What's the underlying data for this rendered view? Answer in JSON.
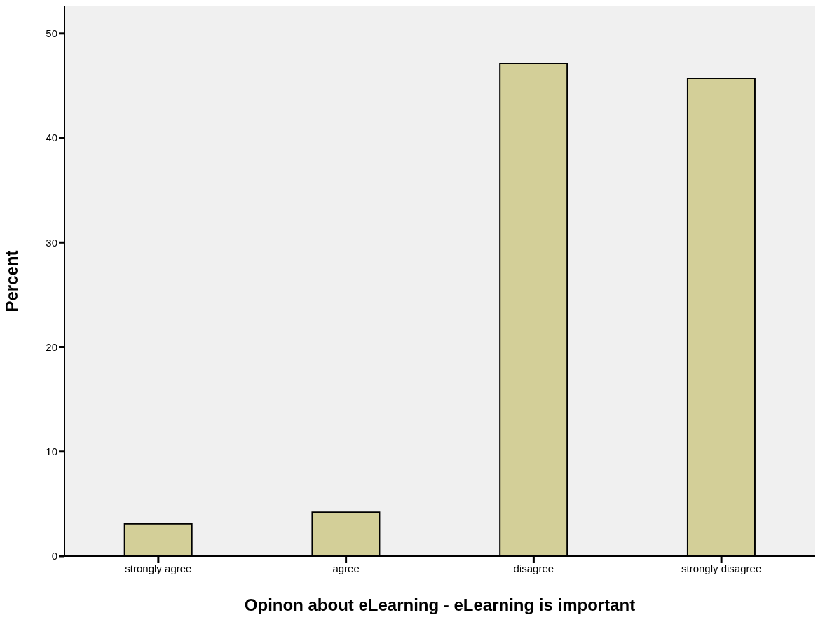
{
  "chart_data": {
    "type": "bar",
    "xlabel": "Opinon about eLearning - eLearning is important",
    "ylabel": "Percent",
    "categories": [
      "strongly agree",
      "agree",
      "disagree",
      "strongly disagree"
    ],
    "values": [
      3.1,
      4.2,
      47.1,
      45.7
    ],
    "color": "#d3cf98",
    "ylim": [
      0,
      52.6
    ],
    "yticks": [
      0,
      10,
      20,
      30,
      40,
      50
    ],
    "grid": false
  }
}
